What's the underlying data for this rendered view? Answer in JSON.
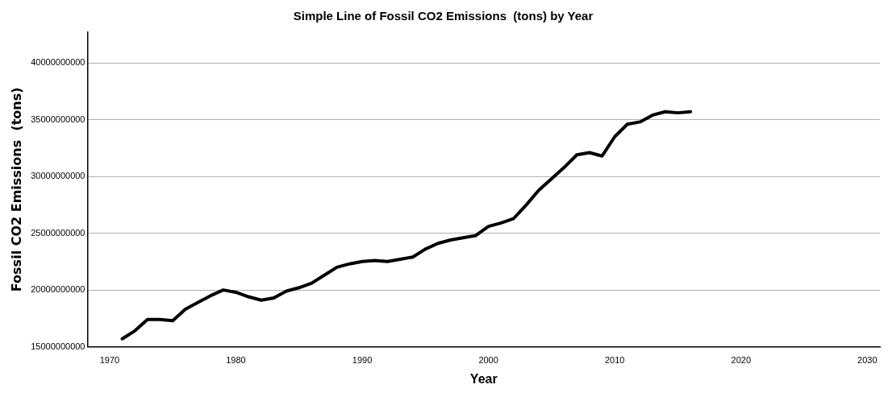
{
  "chart_data": {
    "type": "line",
    "title": "Simple Line of Fossil CO2 Emissions  (tons) by Year",
    "xlabel": "Year",
    "ylabel": "Fossil CO2 Emissions  (tons)",
    "x": [
      1971,
      1972,
      1973,
      1974,
      1975,
      1976,
      1977,
      1978,
      1979,
      1980,
      1981,
      1982,
      1983,
      1984,
      1985,
      1986,
      1987,
      1988,
      1989,
      1990,
      1991,
      1992,
      1993,
      1994,
      1995,
      1996,
      1997,
      1998,
      1999,
      2000,
      2001,
      2002,
      2003,
      2004,
      2005,
      2006,
      2007,
      2008,
      2009,
      2010,
      2011,
      2012,
      2013,
      2014,
      2015,
      2016
    ],
    "series": [
      {
        "color": "#000000",
        "values": [
          15700000000,
          16400000000,
          17400000000,
          17400000000,
          17300000000,
          18300000000,
          18900000000,
          19500000000,
          20000000000,
          19800000000,
          19400000000,
          19100000000,
          19300000000,
          19900000000,
          20200000000,
          20600000000,
          21300000000,
          22000000000,
          22300000000,
          22500000000,
          22600000000,
          22500000000,
          22700000000,
          22900000000,
          23600000000,
          24100000000,
          24400000000,
          24600000000,
          24800000000,
          25600000000,
          25900000000,
          26300000000,
          27500000000,
          28800000000,
          29800000000,
          30800000000,
          31900000000,
          32100000000,
          31800000000,
          33500000000,
          34600000000,
          34800000000,
          35400000000,
          35700000000,
          35600000000,
          35700000000
        ]
      }
    ],
    "xlim": [
      1968.25,
      2031
    ],
    "xticks": [
      1970,
      1980,
      1990,
      2000,
      2010,
      2020,
      2030
    ],
    "ylim": [
      15000000000,
      42700000000
    ],
    "yticks": [
      15000000000,
      20000000000,
      25000000000,
      30000000000,
      35000000000,
      40000000000
    ],
    "grid": "y",
    "legend": false,
    "marker": "none",
    "line_style": "solid"
  }
}
